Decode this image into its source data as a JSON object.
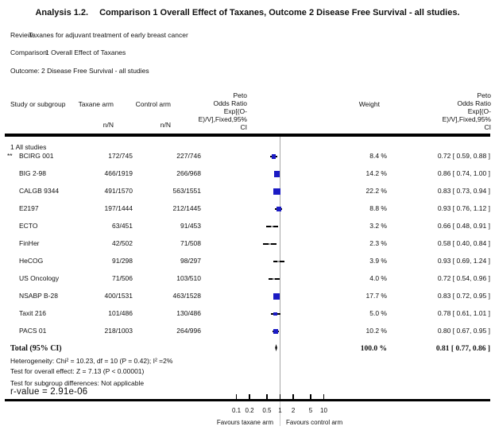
{
  "title": {
    "prefix": "Analysis 1.2.",
    "rest": "Comparison 1 Overall Effect of Taxanes, Outcome 2 Disease Free Survival - all studies."
  },
  "meta": {
    "review_label": "Review:",
    "review": "Taxanes for adjuvant treatment of early breast cancer",
    "comparison_label": "Comparison:",
    "comparison": "1 Overall Effect of Taxanes",
    "outcome_label": "Outcome:",
    "outcome": "2 Disease Free Survival - all studies"
  },
  "table": {
    "col_study": "Study or subgroup",
    "col_taxane": "Taxane arm",
    "col_control": "Control arm",
    "col_nN": "n/N",
    "col_weight": "Weight",
    "col_or_lines": [
      "Peto",
      "Odds Ratio",
      "Exp[(O-",
      "E)/V],Fixed,95%",
      "CI"
    ],
    "subgroup_header": "1 All studies"
  },
  "chart_data": {
    "type": "forest",
    "x_scale": "log",
    "xlim": [
      0.1,
      10
    ],
    "null_line": 1,
    "x_ticks": [
      0.1,
      0.2,
      0.5,
      1,
      2,
      5,
      10
    ],
    "x_tick_labels": [
      "0.1",
      "0.2",
      "0.5",
      "1",
      "2",
      "5",
      "10"
    ],
    "favours_left": "Favours taxane arm",
    "favours_right": "Favours control arm",
    "marker_color": "#1b1bc4",
    "small_marker_color": "#979797",
    "studies": [
      {
        "prefix": "**",
        "name": "BCIRG 001",
        "taxane_nN": "172/745",
        "control_nN": "227/746",
        "or": 0.72,
        "ci_low": 0.59,
        "ci_high": 0.88,
        "weight_pct": 8.4,
        "weight_label": "8.4 %",
        "or_label": "0.72 [ 0.59, 0.88 ]"
      },
      {
        "prefix": "",
        "name": "BIG 2-98",
        "taxane_nN": "466/1919",
        "control_nN": "266/968",
        "or": 0.86,
        "ci_low": 0.74,
        "ci_high": 1.0,
        "weight_pct": 14.2,
        "weight_label": "14.2 %",
        "or_label": "0.86 [ 0.74, 1.00 ]"
      },
      {
        "prefix": "",
        "name": "CALGB 9344",
        "taxane_nN": "491/1570",
        "control_nN": "563/1551",
        "or": 0.83,
        "ci_low": 0.73,
        "ci_high": 0.94,
        "weight_pct": 22.2,
        "weight_label": "22.2 %",
        "or_label": "0.83 [ 0.73, 0.94 ]"
      },
      {
        "prefix": "",
        "name": "E2197",
        "taxane_nN": "197/1444",
        "control_nN": "212/1445",
        "or": 0.93,
        "ci_low": 0.76,
        "ci_high": 1.12,
        "weight_pct": 8.8,
        "weight_label": "8.8 %",
        "or_label": "0.93 [ 0.76, 1.12 ]"
      },
      {
        "prefix": "",
        "name": "ECTO",
        "taxane_nN": "63/451",
        "control_nN": "91/453",
        "or": 0.66,
        "ci_low": 0.48,
        "ci_high": 0.91,
        "weight_pct": 3.2,
        "weight_label": "3.2 %",
        "or_label": "0.66 [ 0.48, 0.91 ]"
      },
      {
        "prefix": "",
        "name": "FinHer",
        "taxane_nN": "42/502",
        "control_nN": "71/508",
        "or": 0.58,
        "ci_low": 0.4,
        "ci_high": 0.84,
        "weight_pct": 2.3,
        "weight_label": "2.3 %",
        "or_label": "0.58 [ 0.40, 0.84 ]"
      },
      {
        "prefix": "",
        "name": "HeCOG",
        "taxane_nN": "91/298",
        "control_nN": "98/297",
        "or": 0.93,
        "ci_low": 0.69,
        "ci_high": 1.24,
        "weight_pct": 3.9,
        "weight_label": "3.9 %",
        "or_label": "0.93 [ 0.69, 1.24 ]"
      },
      {
        "prefix": "",
        "name": "US Oncology",
        "taxane_nN": "71/506",
        "control_nN": "103/510",
        "or": 0.72,
        "ci_low": 0.54,
        "ci_high": 0.96,
        "weight_pct": 4.0,
        "weight_label": "4.0 %",
        "or_label": "0.72 [ 0.54, 0.96 ]"
      },
      {
        "prefix": "",
        "name": "NSABP B-28",
        "taxane_nN": "400/1531",
        "control_nN": "463/1528",
        "or": 0.83,
        "ci_low": 0.72,
        "ci_high": 0.95,
        "weight_pct": 17.7,
        "weight_label": "17.7 %",
        "or_label": "0.83 [ 0.72, 0.95 ]"
      },
      {
        "prefix": "",
        "name": "Taxit 216",
        "taxane_nN": "101/486",
        "control_nN": "130/486",
        "or": 0.78,
        "ci_low": 0.61,
        "ci_high": 1.01,
        "weight_pct": 5.0,
        "weight_label": "5.0 %",
        "or_label": "0.78 [ 0.61, 1.01 ]"
      },
      {
        "prefix": "",
        "name": "PACS 01",
        "taxane_nN": "218/1003",
        "control_nN": "264/996",
        "or": 0.8,
        "ci_low": 0.67,
        "ci_high": 0.95,
        "weight_pct": 10.2,
        "weight_label": "10.2 %",
        "or_label": "0.80 [ 0.67, 0.95 ]"
      }
    ],
    "total": {
      "label": "Total (95% CI)",
      "or": 0.81,
      "ci_low": 0.77,
      "ci_high": 0.86,
      "weight_label": "100.0 %",
      "or_label": "0.81 [ 0.77, 0.86 ]"
    }
  },
  "stats": {
    "heterogeneity": "Heterogeneity: Chi² = 10.23, df = 10 (P = 0.42); I² =2%",
    "overall_effect": "Test for overall effect: Z = 7.13 (P < 0.00001)",
    "subgroup_differences": "Test for subgroup differences: Not applicable",
    "r_value": "r-value = 2.91e-06"
  }
}
